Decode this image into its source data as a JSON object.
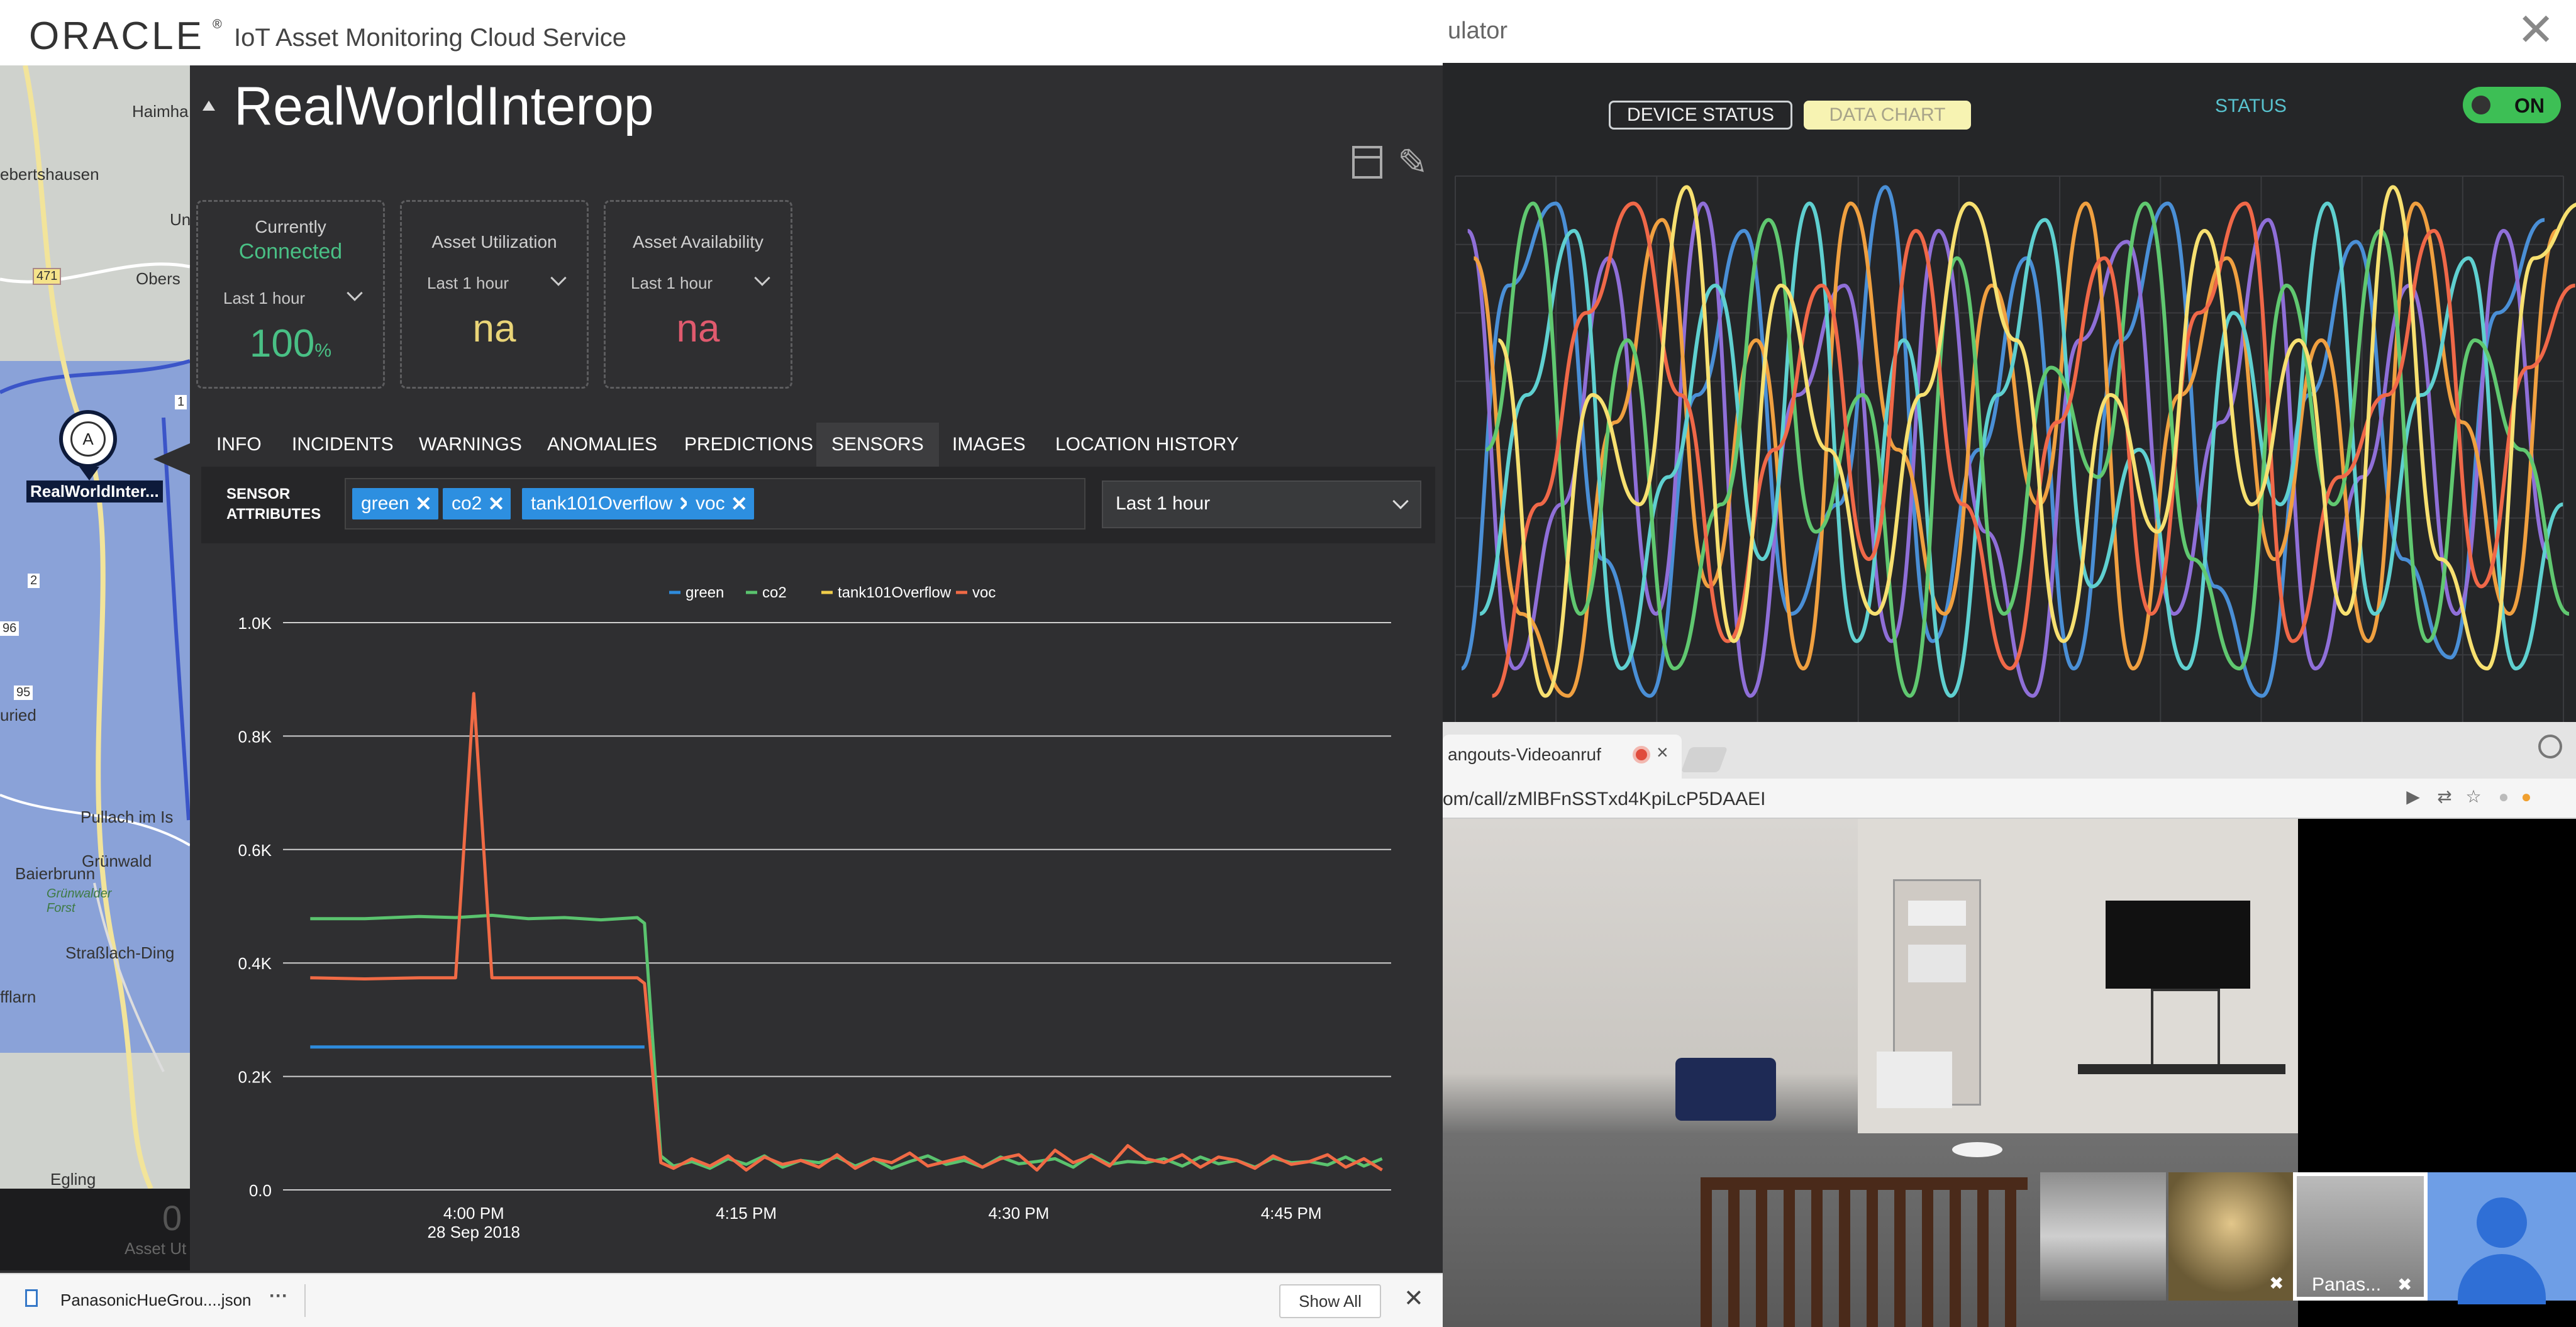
{
  "simulator": {
    "title_fragment": "ulator",
    "close_glyph": "✕",
    "buttons": {
      "device_status": "DEVICE STATUS",
      "data_chart": "DATA CHART"
    },
    "status_label": "STATUS",
    "toggle_label": "ON",
    "toggle_color": "#3dbf55"
  },
  "hangouts": {
    "tab_title": "angouts-Videoanruf",
    "tab_close": "×",
    "url": "om/call/zMlBFnSSTxd4KpiLcP5DAAEI",
    "participant_label": "Panas...",
    "icons": [
      "camera-icon",
      "translate-icon",
      "star-icon",
      "extension-icon",
      "profile-icon",
      "mic-off-icon"
    ]
  },
  "oracle": {
    "logo": "ORACLE",
    "logo_mark": "®",
    "app_name": "IoT Asset Monitoring Cloud Service",
    "asset_title": "RealWorldInterop",
    "map": {
      "pin_letter": "A",
      "pin_label": "RealWorldInter...",
      "labels": [
        "Haimha",
        "ebertshausen",
        "Un",
        "Obers",
        "471",
        "1",
        "2",
        "96",
        "95",
        "uried",
        "Pullach im Is",
        "Grünwald",
        "Grünwalder Forst",
        "Baierbrunn",
        "Straßlach-Ding",
        "fflarn",
        "Egling"
      ],
      "bottom_big": "0",
      "bottom_small": "Asset Ut"
    },
    "cards": [
      {
        "title_line1": "Currently",
        "title_line2": "Connected",
        "range": "Last 1 hour",
        "value": "100",
        "unit": "%",
        "value_color": "#49c085"
      },
      {
        "title_line1": "Asset Utilization",
        "range": "Last 1 hour",
        "value": "na",
        "value_color": "#e9d477"
      },
      {
        "title_line1": "Asset Availability",
        "range": "Last 1 hour",
        "value": "na",
        "value_color": "#e05a6e"
      }
    ],
    "tabs": [
      "INFO",
      "INCIDENTS",
      "WARNINGS",
      "ANOMALIES",
      "PREDICTIONS",
      "SENSORS",
      "IMAGES",
      "LOCATION HISTORY"
    ],
    "active_tab": "SENSORS",
    "filter": {
      "label_line1": "SENSOR",
      "label_line2": "ATTRIBUTES",
      "chips": [
        "green",
        "co2",
        "tank101Overflow",
        "voc"
      ],
      "chip_close": "✕",
      "range": "Last 1 hour"
    }
  },
  "chart_data": [
    {
      "type": "line",
      "legend": [
        "green",
        "co2",
        "tank101Overflow",
        "voc"
      ],
      "legend_placement": "top",
      "y_ticks": [
        "0.0",
        "0.2K",
        "0.4K",
        "0.6K",
        "0.8K",
        "1.0K"
      ],
      "x_ticks": [
        {
          "t": 0,
          "label": "4:00 PM",
          "sublabel": "28 Sep 2018"
        },
        {
          "t": 15,
          "label": "4:15 PM"
        },
        {
          "t": 30,
          "label": "4:30 PM"
        },
        {
          "t": 45,
          "label": "4:45 PM"
        }
      ],
      "xlim": [
        -10.5,
        50.5
      ],
      "ylim": [
        0,
        1000
      ],
      "grid": true,
      "series": [
        {
          "name": "green",
          "color": "#2e8bdc",
          "x": [
            -9,
            9.4
          ],
          "y": [
            252,
            252
          ]
        },
        {
          "name": "co2",
          "color": "#5ac36e",
          "x": [
            -9,
            -6,
            -3,
            -1,
            1,
            3,
            5,
            7,
            9,
            9.4,
            10.3,
            11,
            12,
            13,
            14,
            15,
            16,
            17,
            18,
            19,
            20,
            21,
            22,
            23,
            24,
            25,
            26,
            27,
            28,
            29,
            30,
            31,
            32,
            33,
            34,
            35,
            36,
            37,
            38,
            39,
            40,
            41,
            42,
            43,
            44,
            45,
            46,
            47,
            48,
            49,
            50
          ],
          "y": [
            478,
            478,
            482,
            480,
            484,
            478,
            480,
            476,
            480,
            470,
            60,
            42,
            50,
            38,
            55,
            45,
            60,
            40,
            52,
            48,
            58,
            42,
            55,
            38,
            50,
            60,
            45,
            52,
            40,
            58,
            46,
            50,
            55,
            40,
            62,
            45,
            50,
            48,
            55,
            42,
            58,
            46,
            52,
            40,
            56,
            48,
            50,
            44,
            58,
            42,
            55
          ]
        },
        {
          "name": "tank101Overflow",
          "color": "#f0cd4a",
          "x": [],
          "y": []
        },
        {
          "name": "voc",
          "color": "#f06a45",
          "x": [
            -9,
            -6,
            -3,
            -2,
            -1,
            0,
            1,
            3,
            5,
            7,
            9,
            9.4,
            10.3,
            11,
            12,
            13,
            14,
            15,
            16,
            17,
            18,
            19,
            20,
            21,
            22,
            23,
            24,
            25,
            26,
            27,
            28,
            29,
            30,
            31,
            32,
            33,
            34,
            35,
            36,
            37,
            38,
            39,
            40,
            41,
            42,
            43,
            44,
            45,
            46,
            47,
            48,
            49,
            50
          ],
          "y": [
            374,
            372,
            374,
            374,
            374,
            875,
            374,
            374,
            374,
            374,
            374,
            364,
            48,
            38,
            55,
            42,
            60,
            35,
            58,
            45,
            52,
            40,
            62,
            38,
            55,
            48,
            65,
            42,
            50,
            58,
            40,
            55,
            62,
            35,
            70,
            48,
            60,
            42,
            78,
            55,
            48,
            62,
            40,
            58,
            52,
            38,
            60,
            45,
            50,
            62,
            40,
            55,
            35
          ]
        }
      ]
    },
    {
      "type": "line",
      "legend": [],
      "grid": true,
      "series": [
        {
          "color": "#4a8fd6",
          "y": [
            10,
            80,
            95,
            30,
            5,
            60,
            90,
            20,
            40,
            98,
            15,
            50,
            85,
            10,
            70,
            95,
            25,
            5,
            60,
            88,
            30,
            12,
            75,
            92
          ]
        },
        {
          "color": "#8f6fd8",
          "y": [
            90,
            10,
            40,
            85,
            20,
            95,
            5,
            60,
            80,
            15,
            90,
            35,
            5,
            70,
            88,
            20,
            55,
            92,
            10,
            45,
            80,
            20,
            90,
            30
          ]
        },
        {
          "color": "#f0a040",
          "y": [
            85,
            20,
            5,
            55,
            92,
            25,
            70,
            10,
            95,
            50,
            20,
            80,
            40,
            95,
            10,
            60,
            85,
            30,
            70,
            15,
            95,
            55,
            20,
            90
          ]
        },
        {
          "color": "#5fd0d0",
          "y": [
            20,
            60,
            90,
            10,
            45,
            80,
            30,
            95,
            15,
            70,
            5,
            60,
            92,
            25,
            50,
            10,
            75,
            40,
            95,
            20,
            60,
            85,
            10,
            40
          ]
        },
        {
          "color": "#60c870",
          "y": [
            50,
            95,
            20,
            70,
            10,
            40,
            92,
            35,
            60,
            5,
            85,
            20,
            65,
            45,
            95,
            30,
            10,
            80,
            40,
            90,
            15,
            70,
            50,
            20
          ]
        },
        {
          "color": "#f06848",
          "y": [
            5,
            40,
            75,
            95,
            60,
            15,
            50,
            80,
            30,
            90,
            40,
            10,
            55,
            85,
            20,
            75,
            95,
            15,
            45,
            60,
            90,
            25,
            65,
            80
          ]
        },
        {
          "color": "#f7e070",
          "y": [
            70,
            5,
            60,
            40,
            98,
            15,
            80,
            50,
            20,
            60,
            95,
            70,
            15,
            60,
            35,
            90,
            40,
            70,
            20,
            98,
            30,
            10,
            85,
            95
          ]
        }
      ]
    }
  ],
  "download_bar": {
    "file_name": "PanasonicHueGrou....json",
    "more": "···",
    "show_all": "Show All",
    "close": "✕"
  }
}
